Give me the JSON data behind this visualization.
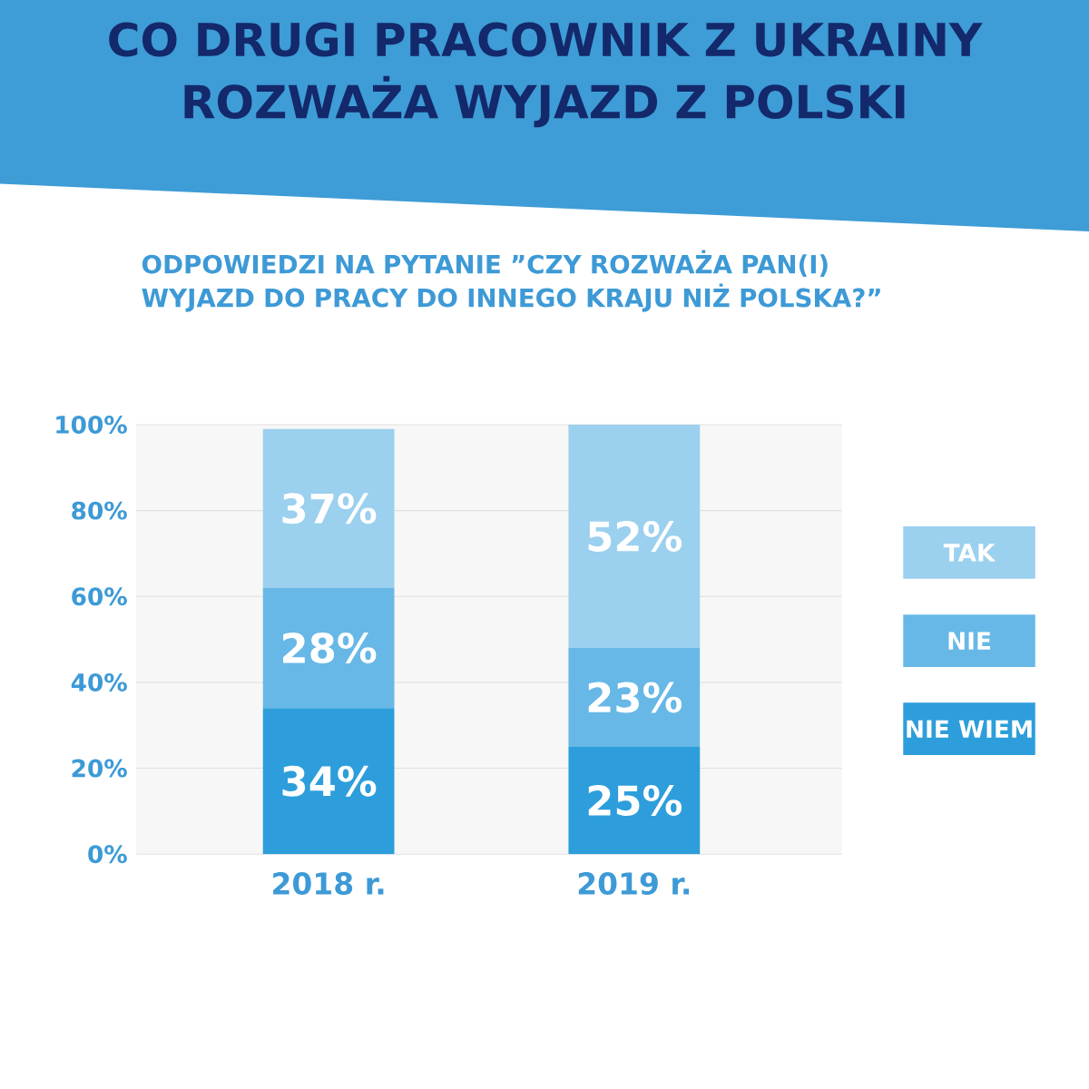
{
  "chart_data": {
    "type": "bar",
    "stacked": true,
    "title": "CO DRUGI PRACOWNIK Z UKRAINY ROZWAŻA WYJAZD Z POLSKI",
    "subtitle": "ODPOWIEDZI NA PYTANIE ”CZY ROZWAŻA PAN(I) WYJAZD DO PRACY DO INNEGO KRAJU NIŻ POLSKA?”",
    "categories": [
      "2018 r.",
      "2019 r."
    ],
    "series": [
      {
        "name": "NIE WIEM",
        "color": "#2d9edb",
        "values": [
          34,
          25
        ],
        "value_labels": [
          "34%",
          "25%"
        ]
      },
      {
        "name": "NIE",
        "color": "#67b8e6",
        "values": [
          28,
          23
        ],
        "value_labels": [
          "28%",
          "23%"
        ]
      },
      {
        "name": "TAK",
        "color": "#9bd0ee",
        "values": [
          37,
          52
        ],
        "value_labels": [
          "37%",
          "52%"
        ]
      }
    ],
    "ylim": [
      0,
      100
    ],
    "yticks": [
      {
        "value": 0,
        "label": "0%"
      },
      {
        "value": 20,
        "label": "20%"
      },
      {
        "value": 40,
        "label": "40%"
      },
      {
        "value": 60,
        "label": "60%"
      },
      {
        "value": 80,
        "label": "80%"
      },
      {
        "value": 100,
        "label": "100%"
      }
    ],
    "grid": "y",
    "legend": "right"
  }
}
